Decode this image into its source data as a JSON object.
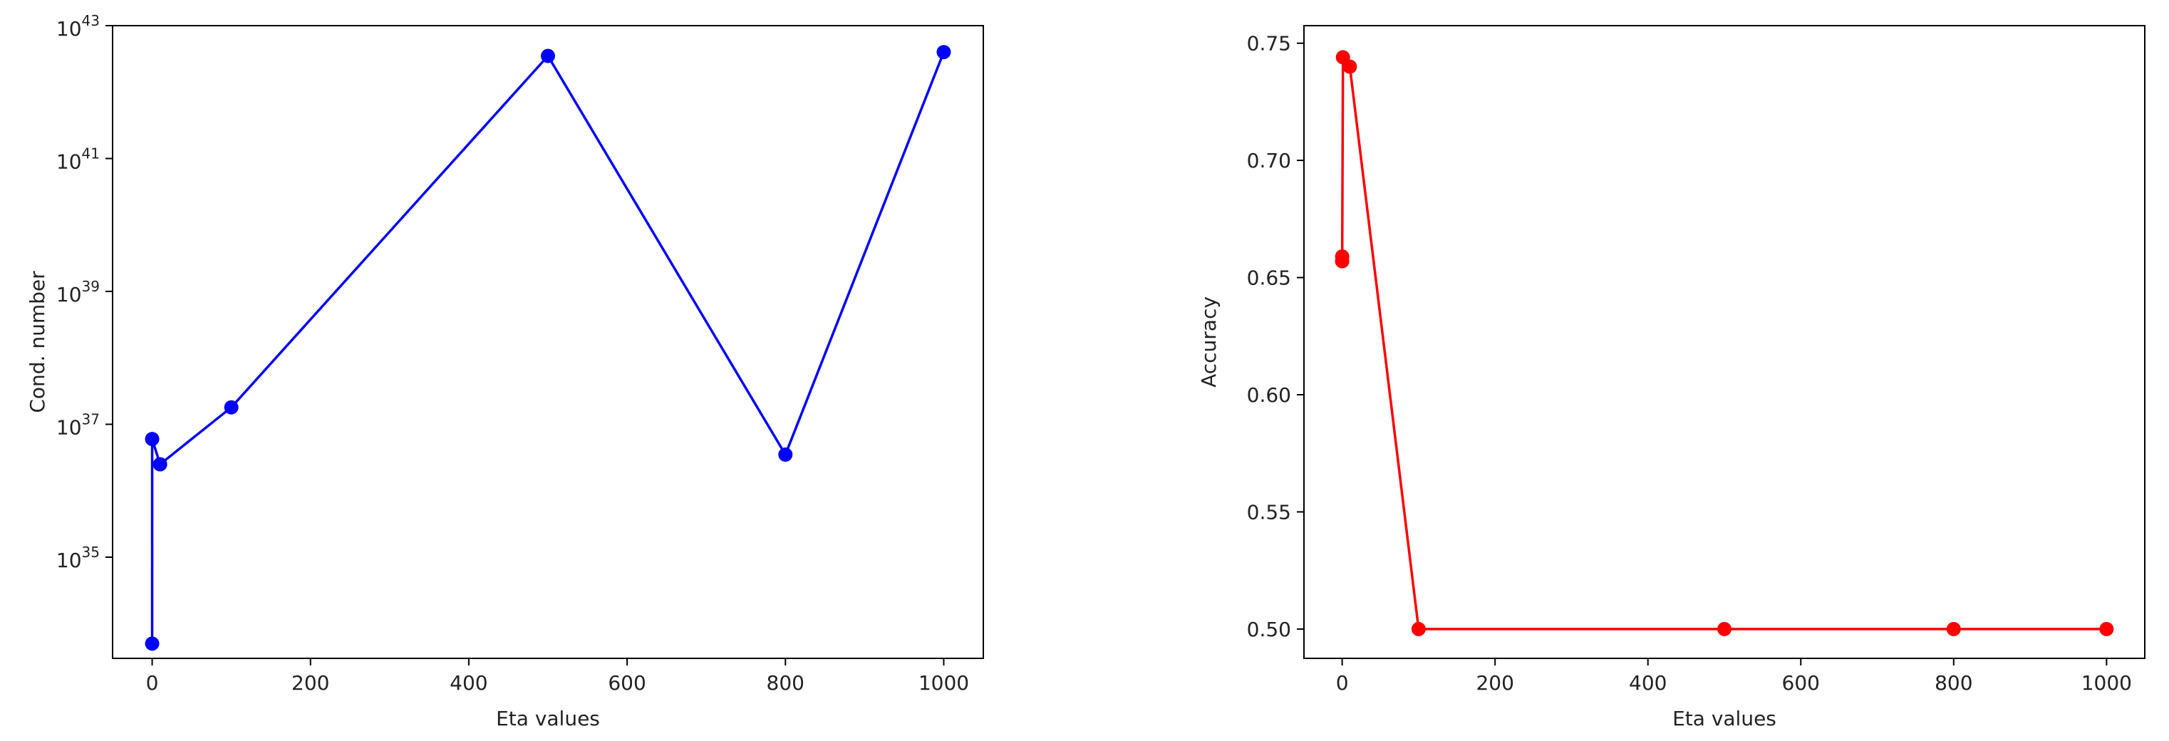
{
  "chart_data": [
    {
      "type": "line",
      "xlabel": "Eta values",
      "ylabel": "Cond. number",
      "yscale": "log",
      "grid": false,
      "x_ticks": [
        0,
        200,
        400,
        600,
        800,
        1000
      ],
      "y_ticks": [
        {
          "base": "10",
          "exp": "35",
          "value": 1e+35
        },
        {
          "base": "10",
          "exp": "37",
          "value": 1e+37
        },
        {
          "base": "10",
          "exp": "39",
          "value": 1e+39
        },
        {
          "base": "10",
          "exp": "41",
          "value": 1e+41
        },
        {
          "base": "10",
          "exp": "43",
          "value": 1e+43
        }
      ],
      "xlim": [
        -50,
        1050
      ],
      "ylim": [
        3e+33,
        1e+43
      ],
      "series": [
        {
          "color": "#0000ff",
          "marker": "circle",
          "points": [
            {
              "x": 0,
              "y": 5e+33
            },
            {
              "x": 0.01,
              "y": 6e+36
            },
            {
              "x": 10,
              "y": 2.5e+36
            },
            {
              "x": 100,
              "y": 1.8e+37
            },
            {
              "x": 500,
              "y": 3.5e+42
            },
            {
              "x": 800,
              "y": 3.5e+36
            },
            {
              "x": 1000,
              "y": 4e+42
            }
          ]
        }
      ]
    },
    {
      "type": "line",
      "xlabel": "Eta values",
      "ylabel": "Accuracy",
      "grid": false,
      "x_ticks": [
        0,
        200,
        400,
        600,
        800,
        1000
      ],
      "y_ticks": [
        "0.50",
        "0.55",
        "0.60",
        "0.65",
        "0.70",
        "0.75"
      ],
      "xlim": [
        -50,
        1050
      ],
      "ylim": [
        0.4875,
        0.7575
      ],
      "series": [
        {
          "color": "#ff0000",
          "marker": "circle",
          "points": [
            {
              "x": 0,
              "y": 0.657
            },
            {
              "x": 0.001,
              "y": 0.659
            },
            {
              "x": 0.01,
              "y": 0.657
            },
            {
              "x": 1,
              "y": 0.744
            },
            {
              "x": 10,
              "y": 0.74
            },
            {
              "x": 100,
              "y": 0.5
            },
            {
              "x": 500,
              "y": 0.5
            },
            {
              "x": 800,
              "y": 0.5
            },
            {
              "x": 1000,
              "y": 0.5
            }
          ]
        }
      ]
    }
  ]
}
